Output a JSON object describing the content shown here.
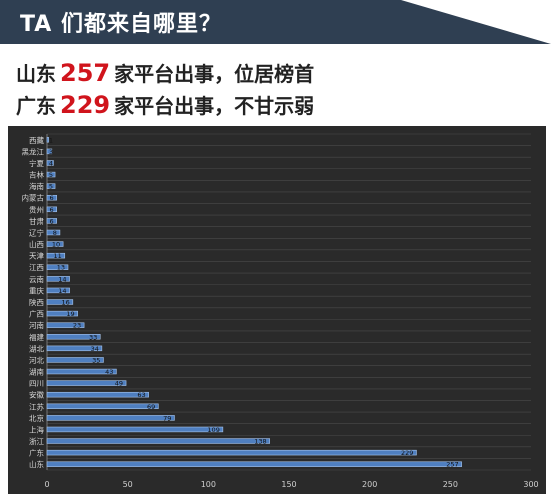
{
  "header": {
    "title": "TA 们都来自哪里？"
  },
  "headline": {
    "line1": {
      "region": "山东",
      "count": "257",
      "text": "家平台出事，位居榜首"
    },
    "line2": {
      "region": "广东",
      "count": "229",
      "text": "家平台出事，不甘示弱"
    }
  },
  "colors": {
    "header_bg": "#2f3f52",
    "highlight": "#d0141c",
    "chart_bg": "#2a2a2a",
    "bar_fill": "#4f7fc0",
    "bar_highlight": "#a7c4ea"
  },
  "chart_data": {
    "type": "bar",
    "orientation": "horizontal",
    "categories": [
      "西藏",
      "黑龙江",
      "宁夏",
      "吉林",
      "海南",
      "内蒙古",
      "贵州",
      "甘肃",
      "辽宁",
      "山西",
      "天津",
      "江西",
      "云南",
      "重庆",
      "陕西",
      "广西",
      "河南",
      "福建",
      "湖北",
      "河北",
      "湖南",
      "四川",
      "安徽",
      "江苏",
      "北京",
      "上海",
      "浙江",
      "广东",
      "山东"
    ],
    "values": [
      1,
      3,
      4,
      5,
      5,
      6,
      6,
      6,
      8,
      10,
      11,
      13,
      14,
      14,
      16,
      19,
      23,
      33,
      34,
      35,
      43,
      49,
      63,
      69,
      79,
      109,
      138,
      229,
      257
    ],
    "value_labels": [
      "1",
      "3",
      "4",
      "5",
      "5",
      "6",
      "6",
      "6",
      "8",
      "10",
      "11",
      "13",
      "14",
      "14",
      "16",
      "19",
      "23",
      "33",
      "34",
      "35",
      "43",
      "49",
      "63",
      "69",
      "79",
      "109",
      "138",
      "229",
      "257"
    ],
    "xticks": [
      0,
      50,
      100,
      150,
      200,
      250,
      300
    ],
    "xtick_labels": [
      "0",
      "50",
      "100",
      "150",
      "200",
      "250",
      "300"
    ],
    "xlim": [
      0,
      300
    ],
    "grid": true
  }
}
